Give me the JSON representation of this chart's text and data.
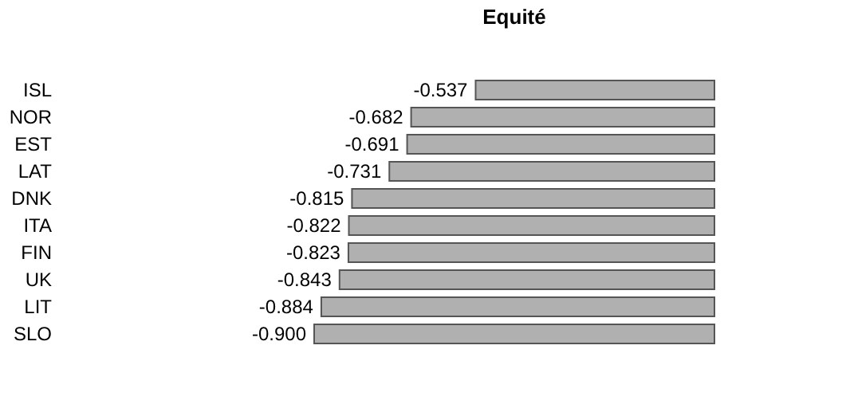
{
  "chart_data": {
    "type": "bar",
    "orientation": "horizontal",
    "title": "Equité",
    "categories": [
      "ISL",
      "NOR",
      "EST",
      "LAT",
      "DNK",
      "ITA",
      "FIN",
      "UK",
      "LIT",
      "SLO"
    ],
    "values": [
      -0.537,
      -0.682,
      -0.691,
      -0.731,
      -0.815,
      -0.822,
      -0.823,
      -0.843,
      -0.884,
      -0.9
    ],
    "value_labels": [
      "-0.537",
      "-0.682",
      "-0.691",
      "-0.731",
      "-0.815",
      "-0.822",
      "-0.823",
      "-0.843",
      "-0.884",
      "-0.900"
    ],
    "color": "#b0b0b0",
    "tick_labels": "y"
  }
}
